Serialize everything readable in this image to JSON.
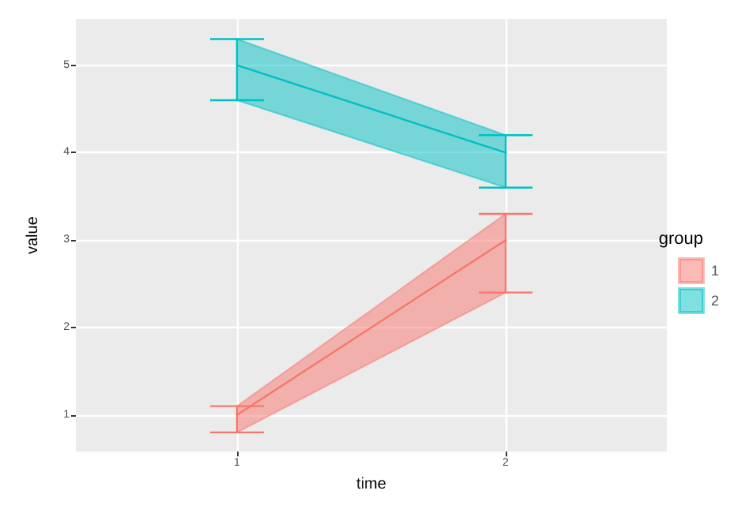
{
  "chart_data": {
    "type": "line",
    "xlabel": "time",
    "ylabel": "value",
    "legend_title": "group",
    "x": [
      1,
      2
    ],
    "series": [
      {
        "name": "1",
        "color": "#f8766d",
        "values": [
          1,
          3
        ],
        "lower": [
          0.8,
          2.4
        ],
        "upper": [
          1.1,
          3.3
        ],
        "errors": [
          [
            0.8,
            1.1
          ],
          [
            2.4,
            3.3
          ]
        ]
      },
      {
        "name": "2",
        "color": "#00bfc4",
        "values": [
          5,
          4
        ],
        "lower": [
          4.6,
          3.6
        ],
        "upper": [
          5.3,
          4.2
        ],
        "errors": [
          [
            4.6,
            5.3
          ],
          [
            3.6,
            4.2
          ]
        ]
      }
    ],
    "xlim": [
      0.4,
      2.6
    ],
    "xticks": [
      1,
      2
    ],
    "ylim": [
      0.58,
      5.53
    ],
    "yticks": [
      1,
      2,
      3,
      4,
      5
    ],
    "grid": true,
    "legend": "right",
    "marker": "none",
    "line_style": "solid"
  }
}
